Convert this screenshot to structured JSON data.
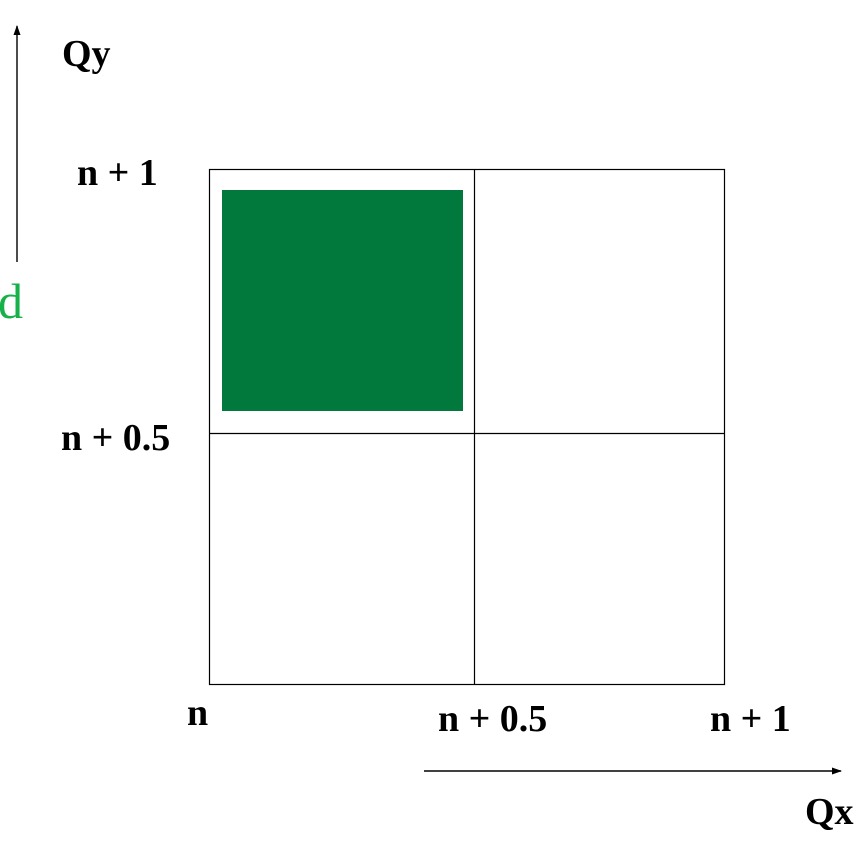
{
  "axes": {
    "x_label": "Qx",
    "y_label": "Qy"
  },
  "x_ticks": [
    "n",
    "n + 0.5",
    "n + 1"
  ],
  "y_ticks": [
    "n + 1",
    "n + 0.5"
  ],
  "side_label": "d",
  "colors": {
    "fill_square": "#02793c",
    "side_label": "#17b14a",
    "lines": "#000000"
  }
}
